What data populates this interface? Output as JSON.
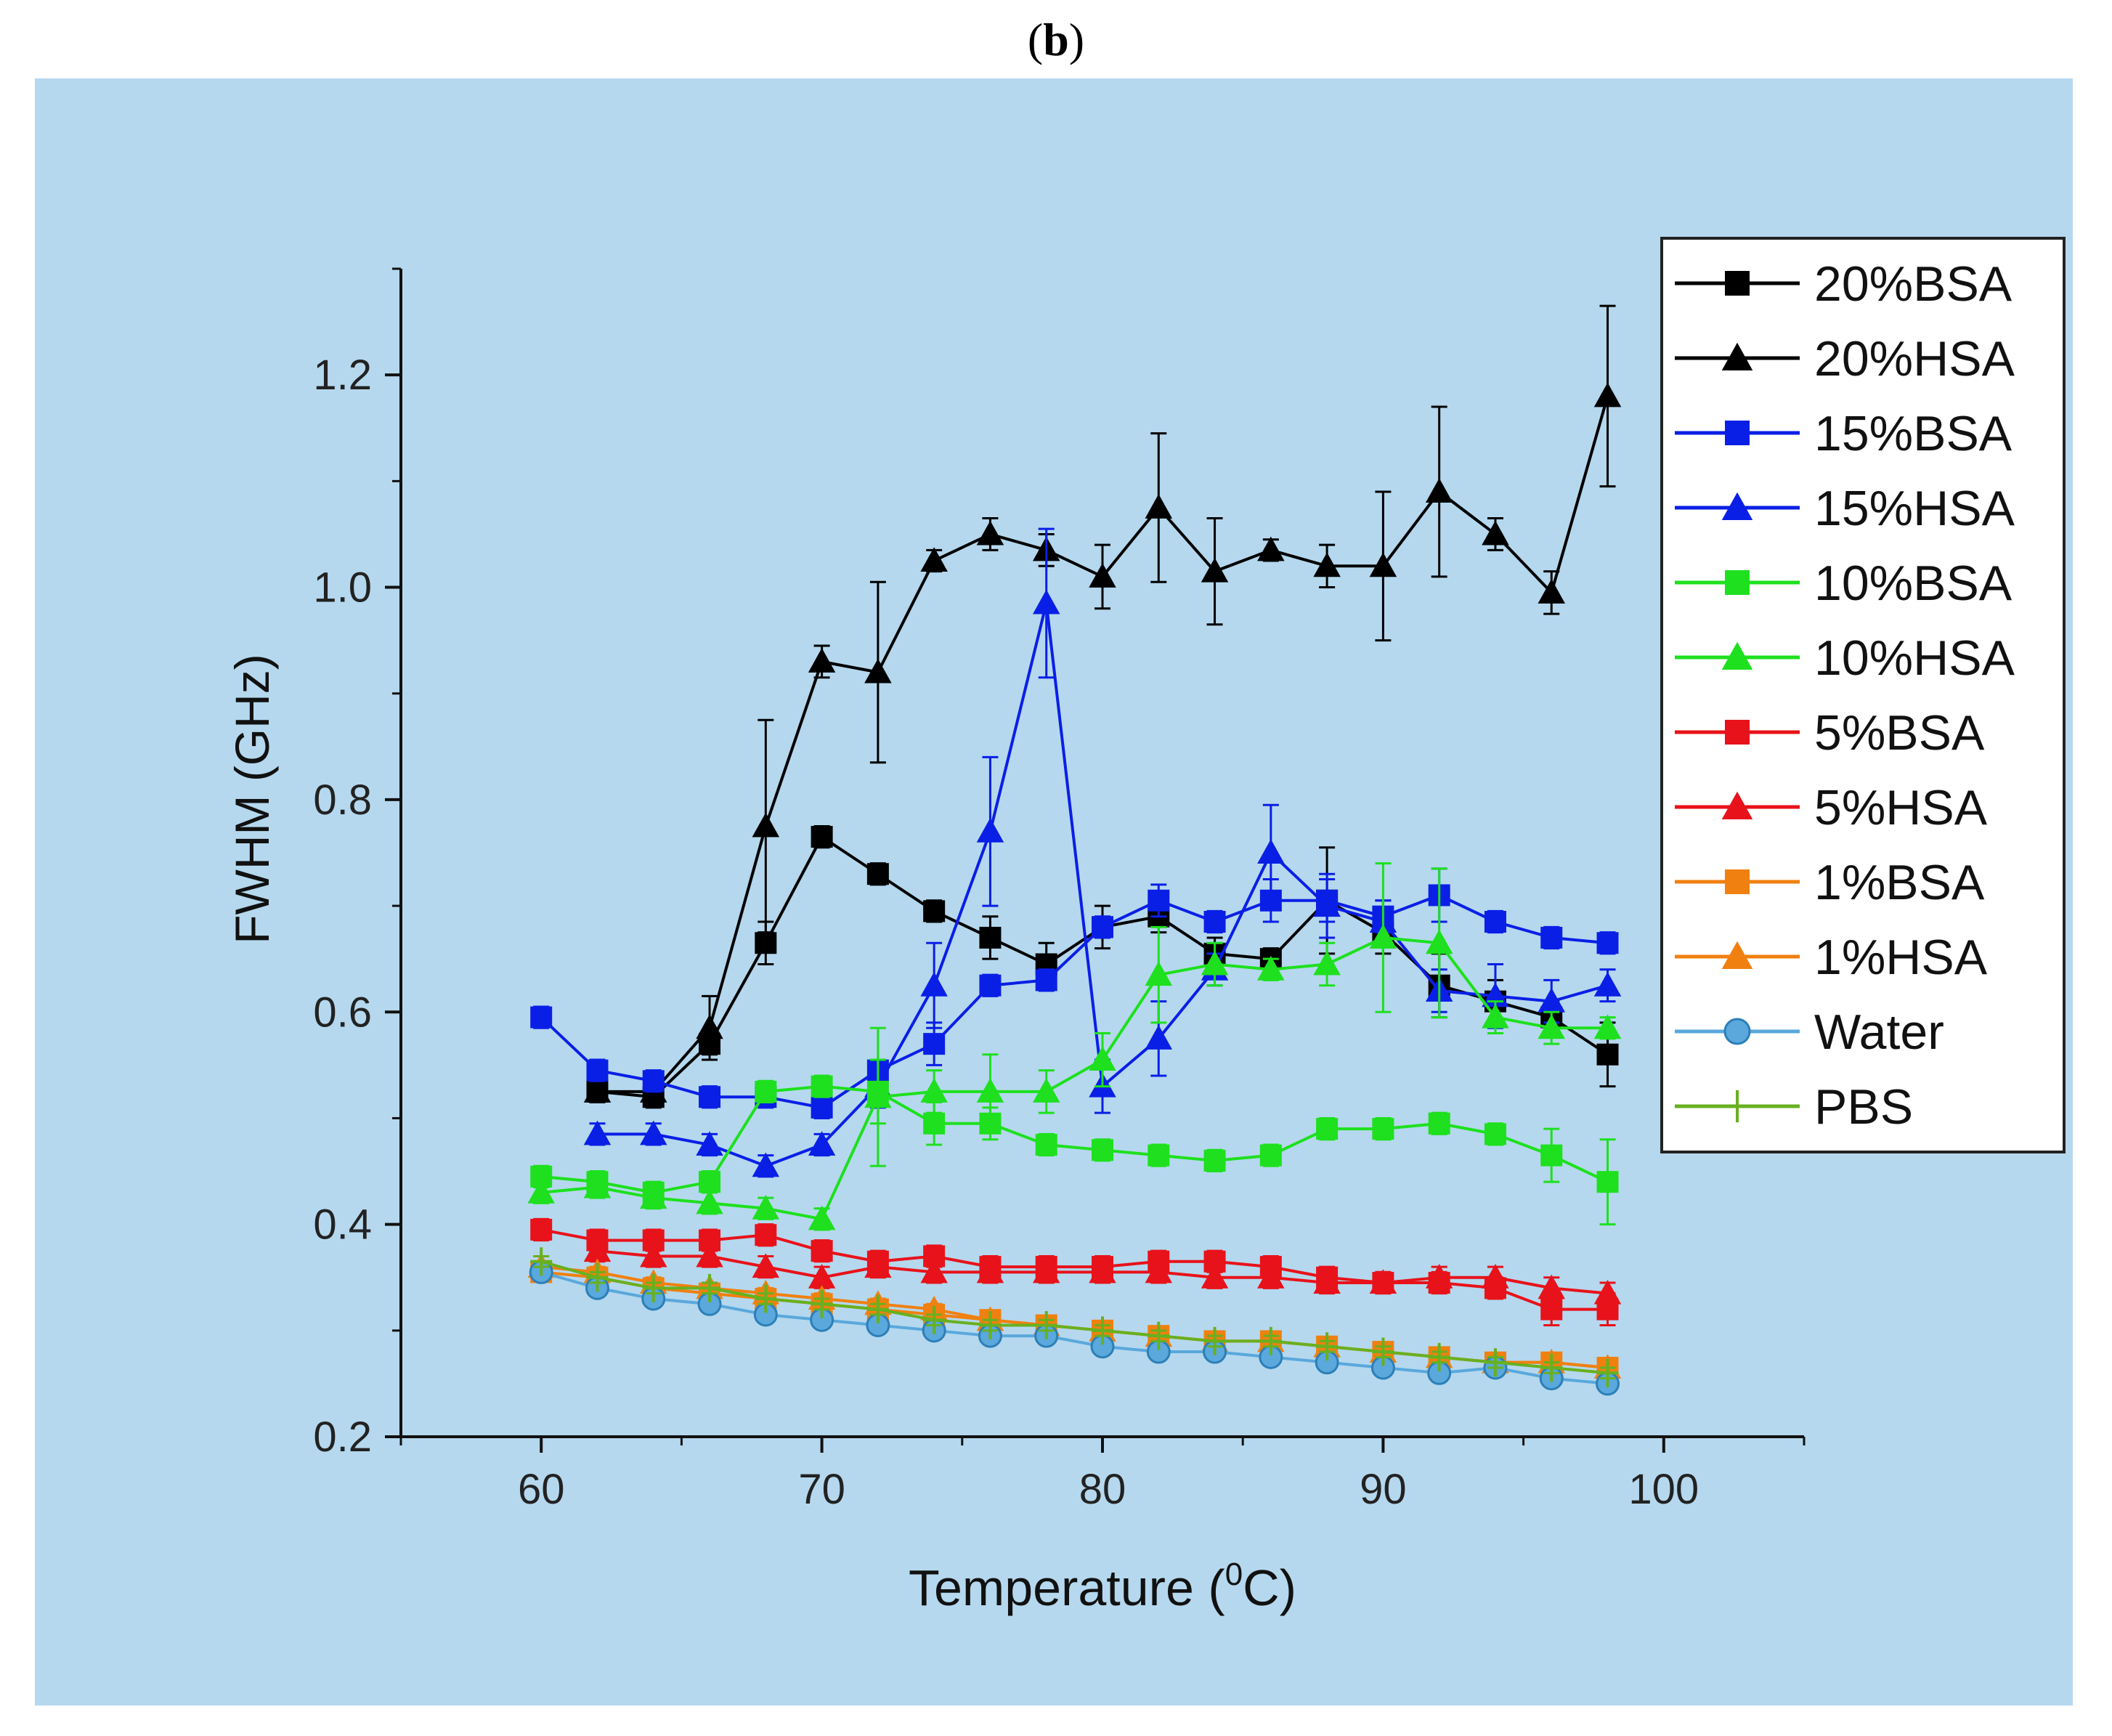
{
  "panel_label": {
    "open": "(",
    "letter": "b",
    "close": ")"
  },
  "chart_data": {
    "type": "line",
    "title": "(b)",
    "xlabel": "Temperature (°C)",
    "xlabel_parts": {
      "prefix": "Temperature (",
      "superscript": "0",
      "suffix": "C)"
    },
    "ylabel": "FWHM (GHz)",
    "xlim": [
      55,
      105
    ],
    "ylim": [
      0.2,
      1.3
    ],
    "xticks": [
      60,
      70,
      80,
      90,
      100
    ],
    "yticks": [
      0.2,
      0.4,
      0.6,
      0.8,
      1.0,
      1.2
    ],
    "xtick_labels": [
      "60",
      "70",
      "80",
      "90",
      "100"
    ],
    "ytick_labels": [
      "0.2",
      "0.4",
      "0.6",
      "0.8",
      "1.0",
      "1.2"
    ],
    "grid": false,
    "legend_position": "right",
    "series": [
      {
        "name": "20%BSA",
        "color": "#000000",
        "marker": "square",
        "x": [
          62,
          64,
          66,
          68,
          70,
          72,
          74,
          76,
          78,
          80,
          82,
          84,
          86,
          88,
          90,
          92,
          94,
          96,
          98
        ],
        "y": [
          0.525,
          0.52,
          0.57,
          0.665,
          0.765,
          0.73,
          0.695,
          0.67,
          0.645,
          0.68,
          0.69,
          0.655,
          0.65,
          0.705,
          0.675,
          0.625,
          0.61,
          0.595,
          0.56
        ],
        "err": [
          0.01,
          0.01,
          0.01,
          0.02,
          0.01,
          0.01,
          0.01,
          0.02,
          0.02,
          0.02,
          0.015,
          0.015,
          0.01,
          0.05,
          0.02,
          0.03,
          0.02,
          0.015,
          0.03
        ]
      },
      {
        "name": "20%HSA",
        "color": "#000000",
        "marker": "triangle",
        "x": [
          62,
          64,
          66,
          68,
          70,
          72,
          74,
          76,
          78,
          80,
          82,
          84,
          86,
          88,
          90,
          92,
          94,
          96,
          98
        ],
        "y": [
          0.525,
          0.525,
          0.585,
          0.775,
          0.93,
          0.92,
          1.025,
          1.05,
          1.035,
          1.01,
          1.075,
          1.015,
          1.035,
          1.02,
          1.02,
          1.09,
          1.05,
          0.995,
          1.18
        ],
        "err": [
          0.01,
          0.01,
          0.03,
          0.1,
          0.015,
          0.085,
          0.01,
          0.015,
          0.015,
          0.03,
          0.07,
          0.05,
          0.01,
          0.02,
          0.07,
          0.08,
          0.015,
          0.02,
          0.085
        ]
      },
      {
        "name": "15%BSA",
        "color": "#0a1fe6",
        "marker": "square",
        "x": [
          60,
          62,
          64,
          66,
          68,
          70,
          72,
          74,
          76,
          78,
          80,
          82,
          84,
          86,
          88,
          90,
          92,
          94,
          96,
          98
        ],
        "y": [
          0.595,
          0.545,
          0.535,
          0.52,
          0.52,
          0.51,
          0.545,
          0.57,
          0.625,
          0.63,
          0.68,
          0.705,
          0.685,
          0.705,
          0.705,
          0.69,
          0.71,
          0.685,
          0.67,
          0.665
        ],
        "err": [
          0.01,
          0.01,
          0.01,
          0.01,
          0.01,
          0.01,
          0.01,
          0.02,
          0.01,
          0.01,
          0.01,
          0.015,
          0.01,
          0.02,
          0.02,
          0.015,
          0.025,
          0.01,
          0.01,
          0.01
        ]
      },
      {
        "name": "15%HSA",
        "color": "#0a1fe6",
        "marker": "triangle",
        "x": [
          62,
          64,
          66,
          68,
          70,
          72,
          74,
          76,
          78,
          80,
          82,
          84,
          86,
          88,
          90,
          92,
          94,
          96,
          98
        ],
        "y": [
          0.485,
          0.485,
          0.475,
          0.455,
          0.475,
          0.53,
          0.625,
          0.77,
          0.985,
          0.53,
          0.575,
          0.64,
          0.75,
          0.7,
          0.685,
          0.62,
          0.615,
          0.61,
          0.625
        ],
        "err": [
          0.01,
          0.01,
          0.01,
          0.01,
          0.01,
          0.02,
          0.04,
          0.07,
          0.07,
          0.025,
          0.035,
          0.015,
          0.045,
          0.03,
          0.02,
          0.02,
          0.03,
          0.02,
          0.015
        ]
      },
      {
        "name": "10%BSA",
        "color": "#1ee01e",
        "marker": "square",
        "x": [
          60,
          62,
          64,
          66,
          68,
          70,
          72,
          74,
          76,
          78,
          80,
          82,
          84,
          86,
          88,
          90,
          92,
          94,
          96,
          98
        ],
        "y": [
          0.445,
          0.44,
          0.43,
          0.44,
          0.525,
          0.53,
          0.525,
          0.495,
          0.495,
          0.475,
          0.47,
          0.465,
          0.46,
          0.465,
          0.49,
          0.49,
          0.495,
          0.485,
          0.465,
          0.44
        ],
        "err": [
          0.01,
          0.01,
          0.01,
          0.01,
          0.01,
          0.01,
          0.03,
          0.02,
          0.015,
          0.01,
          0.01,
          0.01,
          0.01,
          0.01,
          0.01,
          0.01,
          0.01,
          0.01,
          0.025,
          0.04
        ]
      },
      {
        "name": "10%HSA",
        "color": "#1ee01e",
        "marker": "triangle",
        "x": [
          60,
          62,
          64,
          66,
          68,
          70,
          72,
          74,
          76,
          78,
          80,
          82,
          84,
          86,
          88,
          90,
          92,
          94,
          96,
          98
        ],
        "y": [
          0.43,
          0.435,
          0.425,
          0.42,
          0.415,
          0.405,
          0.52,
          0.525,
          0.525,
          0.525,
          0.555,
          0.635,
          0.645,
          0.64,
          0.645,
          0.67,
          0.665,
          0.595,
          0.585,
          0.585
        ],
        "err": [
          0.01,
          0.01,
          0.01,
          0.01,
          0.01,
          0.01,
          0.065,
          0.02,
          0.035,
          0.02,
          0.025,
          0.045,
          0.02,
          0.01,
          0.02,
          0.07,
          0.07,
          0.015,
          0.015,
          0.01
        ]
      },
      {
        "name": "5%BSA",
        "color": "#e8121a",
        "marker": "square",
        "x": [
          60,
          62,
          64,
          66,
          68,
          70,
          72,
          74,
          76,
          78,
          80,
          82,
          84,
          86,
          88,
          90,
          92,
          94,
          96,
          98
        ],
        "y": [
          0.395,
          0.385,
          0.385,
          0.385,
          0.39,
          0.375,
          0.365,
          0.37,
          0.36,
          0.36,
          0.36,
          0.365,
          0.365,
          0.36,
          0.35,
          0.345,
          0.345,
          0.34,
          0.32,
          0.32
        ],
        "err": [
          0.01,
          0.01,
          0.01,
          0.01,
          0.01,
          0.01,
          0.01,
          0.01,
          0.01,
          0.01,
          0.01,
          0.01,
          0.01,
          0.01,
          0.01,
          0.01,
          0.01,
          0.01,
          0.015,
          0.015
        ]
      },
      {
        "name": "5%HSA",
        "color": "#e8121a",
        "marker": "triangle",
        "x": [
          62,
          64,
          66,
          68,
          70,
          72,
          74,
          76,
          78,
          80,
          82,
          84,
          86,
          88,
          90,
          92,
          94,
          96,
          98
        ],
        "y": [
          0.375,
          0.37,
          0.37,
          0.36,
          0.35,
          0.36,
          0.355,
          0.355,
          0.355,
          0.355,
          0.355,
          0.35,
          0.35,
          0.345,
          0.345,
          0.35,
          0.35,
          0.34,
          0.335
        ],
        "err": [
          0.01,
          0.01,
          0.01,
          0.01,
          0.01,
          0.01,
          0.01,
          0.01,
          0.01,
          0.01,
          0.01,
          0.01,
          0.01,
          0.01,
          0.01,
          0.01,
          0.01,
          0.01,
          0.01
        ]
      },
      {
        "name": "1%BSA",
        "color": "#f08010",
        "marker": "square",
        "x": [
          60,
          62,
          64,
          66,
          68,
          70,
          72,
          74,
          76,
          78,
          80,
          82,
          84,
          86,
          88,
          90,
          92,
          94,
          96,
          98
        ],
        "y": [
          0.355,
          0.35,
          0.34,
          0.335,
          0.33,
          0.325,
          0.32,
          0.315,
          0.31,
          0.305,
          0.3,
          0.295,
          0.29,
          0.29,
          0.285,
          0.28,
          0.275,
          0.27,
          0.27,
          0.265
        ],
        "err": [
          0.005,
          0.005,
          0.005,
          0.005,
          0.005,
          0.005,
          0.005,
          0.005,
          0.005,
          0.005,
          0.005,
          0.005,
          0.005,
          0.005,
          0.005,
          0.005,
          0.005,
          0.005,
          0.005,
          0.005
        ]
      },
      {
        "name": "1%HSA",
        "color": "#f08010",
        "marker": "triangle",
        "x": [
          60,
          62,
          64,
          66,
          68,
          70,
          72,
          74,
          76,
          78,
          80,
          82,
          84,
          86,
          88,
          90,
          92,
          94,
          96,
          98
        ],
        "y": [
          0.36,
          0.355,
          0.345,
          0.34,
          0.335,
          0.33,
          0.325,
          0.32,
          0.31,
          0.305,
          0.3,
          0.295,
          0.29,
          0.29,
          0.285,
          0.28,
          0.275,
          0.27,
          0.27,
          0.265
        ],
        "err": [
          0.005,
          0.005,
          0.005,
          0.005,
          0.005,
          0.005,
          0.005,
          0.005,
          0.005,
          0.005,
          0.005,
          0.005,
          0.005,
          0.005,
          0.005,
          0.005,
          0.005,
          0.005,
          0.005,
          0.005
        ]
      },
      {
        "name": "Water",
        "color": "#5aa8dc",
        "marker": "circle",
        "x": [
          60,
          62,
          64,
          66,
          68,
          70,
          72,
          74,
          76,
          78,
          80,
          82,
          84,
          86,
          88,
          90,
          92,
          94,
          96,
          98
        ],
        "y": [
          0.355,
          0.34,
          0.33,
          0.325,
          0.315,
          0.31,
          0.305,
          0.3,
          0.295,
          0.295,
          0.285,
          0.28,
          0.28,
          0.275,
          0.27,
          0.265,
          0.26,
          0.265,
          0.255,
          0.25
        ],
        "err": [
          0.005,
          0.005,
          0.005,
          0.005,
          0.005,
          0.005,
          0.005,
          0.005,
          0.005,
          0.005,
          0.005,
          0.005,
          0.005,
          0.005,
          0.005,
          0.005,
          0.005,
          0.005,
          0.005,
          0.005
        ]
      },
      {
        "name": "PBS",
        "color": "#68b020",
        "marker": "plus",
        "x": [
          60,
          62,
          64,
          66,
          68,
          70,
          72,
          74,
          76,
          78,
          80,
          82,
          84,
          86,
          88,
          90,
          92,
          94,
          96,
          98
        ],
        "y": [
          0.365,
          0.35,
          0.34,
          0.34,
          0.33,
          0.325,
          0.32,
          0.31,
          0.305,
          0.305,
          0.3,
          0.295,
          0.29,
          0.29,
          0.285,
          0.28,
          0.275,
          0.27,
          0.265,
          0.26
        ],
        "err": [
          0.005,
          0.005,
          0.005,
          0.005,
          0.005,
          0.005,
          0.005,
          0.005,
          0.005,
          0.005,
          0.005,
          0.005,
          0.005,
          0.005,
          0.005,
          0.005,
          0.005,
          0.005,
          0.005,
          0.005
        ]
      }
    ]
  }
}
